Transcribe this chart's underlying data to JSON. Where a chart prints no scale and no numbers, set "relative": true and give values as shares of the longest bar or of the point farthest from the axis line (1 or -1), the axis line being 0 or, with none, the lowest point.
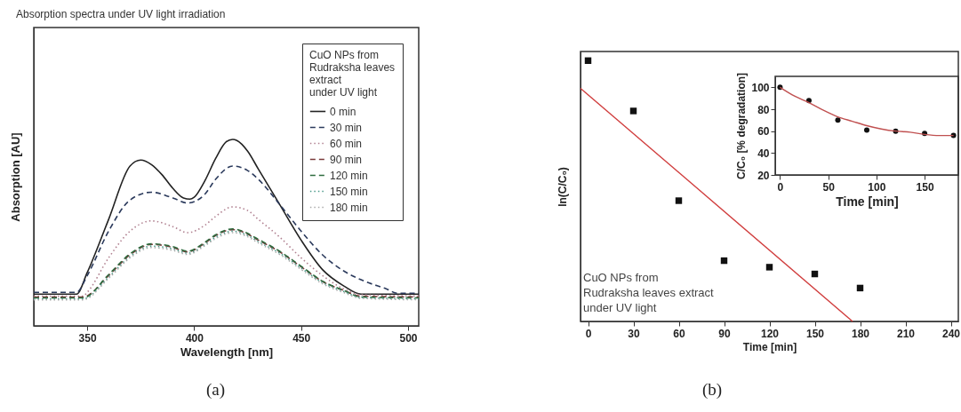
{
  "chart_data": [
    {
      "type": "line",
      "title": "Absorption spectra under UV light irradiation",
      "xlabel": "Wavelength [nm]",
      "ylabel": "Absorption [AU]",
      "legend_title": "CuO NPs from\nRudraksha leaves\nextract\nunder UV light",
      "relative": true,
      "xlim": [
        325,
        505
      ],
      "xticks": [
        350,
        400,
        450,
        500
      ],
      "legend": "top right",
      "grid": false,
      "annotations": [
        "(a)"
      ],
      "series": [
        {
          "name": "0 min",
          "color": "#222222",
          "line_style": "solid",
          "x": [
            325,
            345,
            350,
            360,
            370,
            375,
            380,
            385,
            390,
            395,
            398,
            400,
            405,
            410,
            415,
            418,
            420,
            425,
            430,
            440,
            450,
            460,
            470,
            478,
            505
          ],
          "values": [
            0.17,
            0.17,
            0.286,
            0.571,
            0.857,
            0.889,
            0.865,
            0.81,
            0.738,
            0.686,
            0.68,
            0.69,
            0.778,
            0.897,
            0.987,
            1.0,
            0.994,
            0.937,
            0.841,
            0.651,
            0.46,
            0.302,
            0.214,
            0.17,
            0.17
          ]
        },
        {
          "name": "30 min",
          "color": "#2b3a5c",
          "line_style": "dashed",
          "x": [
            325,
            345,
            350,
            360,
            370,
            380,
            390,
            397,
            405,
            410,
            418,
            425,
            430,
            440,
            450,
            460,
            470,
            480,
            490,
            495,
            505
          ],
          "values": [
            0.18,
            0.18,
            0.27,
            0.508,
            0.675,
            0.717,
            0.686,
            0.659,
            0.706,
            0.786,
            0.857,
            0.833,
            0.786,
            0.651,
            0.508,
            0.381,
            0.294,
            0.238,
            0.198,
            0.175,
            0.175
          ]
        },
        {
          "name": "60 min",
          "color": "#b08090",
          "line_style": "dotted",
          "x": [
            325,
            348,
            350,
            360,
            370,
            380,
            390,
            397,
            405,
            410,
            418,
            425,
            430,
            440,
            450,
            460,
            470,
            478,
            505
          ],
          "values": [
            0.159,
            0.159,
            0.18,
            0.365,
            0.508,
            0.563,
            0.532,
            0.5,
            0.54,
            0.587,
            0.638,
            0.619,
            0.571,
            0.476,
            0.365,
            0.27,
            0.198,
            0.167,
            0.16
          ]
        },
        {
          "name": "90 min",
          "color": "#7a3a3a",
          "line_style": "dashed",
          "x": [
            325,
            348,
            360,
            370,
            380,
            390,
            397,
            405,
            410,
            418,
            425,
            430,
            440,
            450,
            460,
            470,
            478,
            505
          ],
          "values": [
            0.155,
            0.155,
            0.27,
            0.381,
            0.437,
            0.421,
            0.397,
            0.444,
            0.484,
            0.516,
            0.492,
            0.46,
            0.397,
            0.317,
            0.238,
            0.19,
            0.159,
            0.155
          ]
        },
        {
          "name": "120 min",
          "color": "#2e6b3e",
          "line_style": "dashed",
          "x": [
            325,
            348,
            360,
            370,
            380,
            390,
            397,
            405,
            410,
            418,
            425,
            430,
            440,
            450,
            460,
            470,
            478,
            505
          ],
          "values": [
            0.15,
            0.15,
            0.275,
            0.386,
            0.44,
            0.425,
            0.4,
            0.448,
            0.488,
            0.52,
            0.496,
            0.464,
            0.4,
            0.32,
            0.24,
            0.19,
            0.155,
            0.15
          ]
        },
        {
          "name": "150 min",
          "color": "#4a9a8a",
          "line_style": "dotted",
          "x": [
            325,
            348,
            360,
            370,
            380,
            390,
            397,
            405,
            410,
            418,
            425,
            430,
            440,
            450,
            460,
            470,
            478,
            505
          ],
          "values": [
            0.145,
            0.145,
            0.262,
            0.372,
            0.428,
            0.413,
            0.39,
            0.436,
            0.476,
            0.508,
            0.485,
            0.452,
            0.39,
            0.31,
            0.232,
            0.184,
            0.152,
            0.145
          ]
        },
        {
          "name": "180 min",
          "color": "#aaaaaa",
          "line_style": "dotted",
          "x": [
            325,
            348,
            360,
            370,
            380,
            390,
            397,
            405,
            410,
            418,
            425,
            430,
            440,
            450,
            460,
            470,
            478,
            505
          ],
          "values": [
            0.14,
            0.14,
            0.255,
            0.365,
            0.42,
            0.405,
            0.383,
            0.43,
            0.468,
            0.5,
            0.478,
            0.445,
            0.383,
            0.303,
            0.226,
            0.178,
            0.148,
            0.14
          ]
        }
      ]
    },
    {
      "type": "scatter",
      "xlabel": "Time [min]",
      "ylabel": "ln(C/C₀)",
      "relative": true,
      "x": [
        0,
        30,
        60,
        90,
        120,
        150,
        180
      ],
      "xlim": [
        -5,
        245
      ],
      "xticks": [
        0,
        30,
        60,
        90,
        120,
        150,
        180,
        210,
        240
      ],
      "grid": false,
      "annotations": [
        "CuO NPs from\nRudraksha leaves extract\nunder UV light",
        "(b)"
      ],
      "series": [
        {
          "color": "#111111",
          "marker": "square",
          "values": [
            1.0,
            0.807,
            0.463,
            0.233,
            0.208,
            0.182,
            0.128
          ]
        },
        {
          "type": "line",
          "marker": "none",
          "color": "#d03c3c",
          "x": [
            -5,
            175
          ],
          "values": [
            0.894,
            0
          ]
        }
      ]
    },
    {
      "type": "scatter",
      "xlabel": "Time [min]",
      "ylabel": "C/C₀ [% degradation]",
      "x": [
        0,
        30,
        60,
        90,
        120,
        150,
        180
      ],
      "xlim": [
        -5,
        185
      ],
      "xticks": [
        0,
        50,
        100,
        150
      ],
      "ylim": [
        20,
        110
      ],
      "yticks": [
        20,
        40,
        60,
        80,
        100
      ],
      "grid": false,
      "series": [
        {
          "color": "#111111",
          "marker": "circle",
          "values": [
            100,
            88,
            70,
            61,
            60,
            58,
            56
          ]
        },
        {
          "type": "line",
          "marker": "none",
          "color": "#c05050",
          "x": [
            0,
            15,
            30,
            45,
            60,
            75,
            90,
            105,
            120,
            135,
            150,
            165,
            180
          ],
          "values": [
            100,
            92,
            86,
            79,
            73,
            69,
            65,
            62,
            60,
            59,
            57,
            56,
            56
          ]
        }
      ]
    }
  ]
}
